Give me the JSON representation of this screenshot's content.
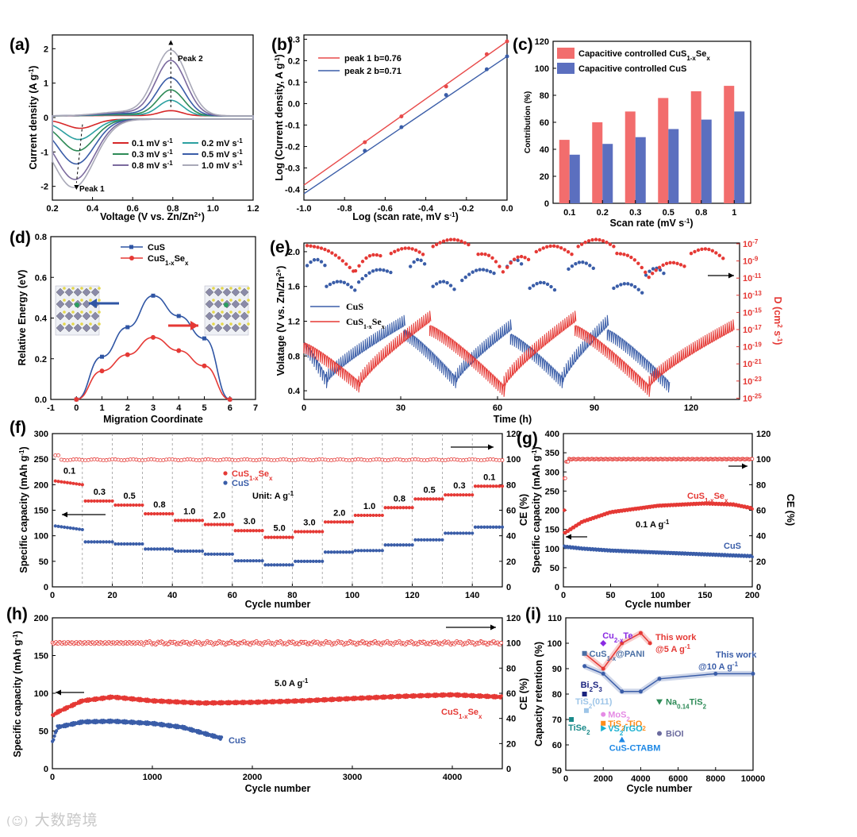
{
  "chart_data": [
    {
      "panel": "(a)",
      "type": "line",
      "xlabel": "Voltage (V vs. Zn/Zn2+)",
      "ylabel": "Current density (A g-1)",
      "xlim": [
        0.2,
        1.2
      ],
      "ylim": [
        -2.4,
        2.4
      ],
      "xticks": [
        0.2,
        0.4,
        0.6,
        0.8,
        1.0,
        1.2
      ],
      "yticks": [
        -2,
        -1,
        0,
        1,
        2
      ],
      "annotations": [
        "Peak 1",
        "Peak 2"
      ],
      "series": [
        {
          "name": "0.1 mV s-1",
          "color": "#d62728",
          "peak2": 0.15,
          "peak1": -0.25
        },
        {
          "name": "0.2 mV s-1",
          "color": "#2ca0a0",
          "peak2": 0.45,
          "peak1": -0.55
        },
        {
          "name": "0.3 mV s-1",
          "color": "#2e8b57",
          "peak2": 0.75,
          "peak1": -0.85
        },
        {
          "name": "0.5 mV s-1",
          "color": "#3a5da8",
          "peak2": 1.1,
          "peak1": -1.2
        },
        {
          "name": "0.8 mV s-1",
          "color": "#7b6a9e",
          "peak2": 1.6,
          "peak1": -1.6
        },
        {
          "name": "1.0 mV s-1",
          "color": "#a9a9b8",
          "peak2": 1.9,
          "peak1": -1.8
        }
      ]
    },
    {
      "panel": "(b)",
      "type": "line",
      "xlabel": "Log (scan rate, mV s-1)",
      "ylabel": "Log (Current density, A g-1)",
      "xlim": [
        -1.0,
        0.0
      ],
      "ylim": [
        -0.45,
        0.32
      ],
      "xticks": [
        -1.0,
        -0.8,
        -0.6,
        -0.4,
        -0.2,
        0.0
      ],
      "yticks": [
        -0.4,
        -0.3,
        -0.2,
        -0.1,
        0.0,
        0.1,
        0.2,
        0.3
      ],
      "series": [
        {
          "name": "peak 1 b=0.76",
          "color": "#e84a4a",
          "x": [
            -1.0,
            -0.7,
            -0.52,
            -0.3,
            -0.1,
            0.0
          ],
          "y": [
            -0.38,
            -0.18,
            -0.06,
            0.08,
            0.23,
            0.29
          ]
        },
        {
          "name": "peak 2 b=0.71",
          "color": "#3a5da8",
          "x": [
            -1.0,
            -0.7,
            -0.52,
            -0.3,
            -0.1,
            0.0
          ],
          "y": [
            -0.42,
            -0.22,
            -0.11,
            0.04,
            0.16,
            0.22
          ]
        }
      ]
    },
    {
      "panel": "(c)",
      "type": "bar",
      "xlabel": "Scan rate (mV s-1)",
      "ylabel": "Contribution (%)",
      "ylim": [
        0,
        120
      ],
      "yticks": [
        0,
        20,
        40,
        60,
        80,
        100,
        120
      ],
      "categories": [
        "0.1",
        "0.2",
        "0.3",
        "0.5",
        "0.8",
        "1"
      ],
      "series": [
        {
          "name": "Capacitive controlled CuS1-xSex",
          "color": "#f26d6d",
          "values": [
            47,
            60,
            68,
            78,
            83,
            87
          ]
        },
        {
          "name": "Capacitive controlled CuS",
          "color": "#5b6fbf",
          "values": [
            36,
            44,
            49,
            55,
            62,
            68
          ]
        }
      ]
    },
    {
      "panel": "(d)",
      "type": "line",
      "xlabel": "Migration Coordinate",
      "ylabel": "Relative Energy (eV)",
      "xlim": [
        -1,
        7
      ],
      "ylim": [
        0,
        0.8
      ],
      "xticks": [
        -1,
        0,
        1,
        2,
        3,
        4,
        5,
        6,
        7
      ],
      "yticks": [
        0.0,
        0.2,
        0.4,
        0.6,
        0.8
      ],
      "series": [
        {
          "name": "CuS",
          "color": "#2f55a4",
          "x": [
            0,
            1,
            2,
            3,
            4,
            5,
            6
          ],
          "y": [
            0.0,
            0.21,
            0.355,
            0.51,
            0.41,
            0.3,
            0.0
          ]
        },
        {
          "name": "CuS1-xSex",
          "color": "#e53935",
          "x": [
            0,
            1,
            2,
            3,
            4,
            5,
            6
          ],
          "y": [
            0.0,
            0.14,
            0.22,
            0.305,
            0.24,
            0.165,
            0.0
          ]
        }
      ]
    },
    {
      "panel": "(e)",
      "type": "line",
      "xlabel": "Time (h)",
      "ylabel": "Volatage (V vs. Zn/Zn2+)",
      "ylabel_right": "D (cm2 s-1)",
      "xlim": [
        0,
        135
      ],
      "ylim": [
        0.3,
        2.1
      ],
      "xticks": [
        0,
        30,
        60,
        90,
        120
      ],
      "yticks": [
        0.4,
        0.8,
        1.2,
        1.6,
        2.0
      ],
      "yticks_right": [
        "10-7",
        "10-9",
        "10-11",
        "10-13",
        "10-15",
        "10-17",
        "10-19",
        "10-21",
        "10-23",
        "10-25"
      ],
      "series": [
        {
          "name": "CuS",
          "color": "#3a5da8"
        },
        {
          "name": "CuS1-xSex",
          "color": "#e53935"
        }
      ]
    },
    {
      "panel": "(f)",
      "type": "scatter",
      "xlabel": "Cycle number",
      "ylabel": "Specific capacity (mAh g-1)",
      "xlim": [
        0,
        150
      ],
      "ylim": [
        0,
        300
      ],
      "ylim_right": [
        0,
        120
      ],
      "xticks": [
        0,
        20,
        40,
        60,
        80,
        100,
        120,
        140
      ],
      "yticks": [
        0,
        50,
        100,
        150,
        200,
        250,
        300
      ],
      "yticks_right": [
        0,
        20,
        40,
        60,
        80,
        100,
        120
      ],
      "unit_label": "Unit: A g-1",
      "rate_labels": [
        "0.1",
        "0.3",
        "0.5",
        "0.8",
        "1.0",
        "2.0",
        "3.0",
        "5.0",
        "3.0",
        "2.0",
        "1.0",
        "0.8",
        "0.5",
        "0.3",
        "0.1"
      ],
      "series": [
        {
          "name": "CuS1-xSex",
          "color": "#e53935",
          "values": [
            200,
            168,
            160,
            143,
            130,
            122,
            110,
            97,
            108,
            127,
            140,
            155,
            172,
            180,
            197
          ]
        },
        {
          "name": "CuS",
          "color": "#3a5da8",
          "values": [
            112,
            88,
            84,
            74,
            70,
            64,
            51,
            43,
            50,
            68,
            71,
            82,
            92,
            105,
            117
          ]
        }
      ]
    },
    {
      "panel": "(g)",
      "type": "scatter",
      "xlabel": "Cycle number",
      "ylabel": "Specific capacity (mAh g-1)",
      "ylabel_right": "CE (%)",
      "xlim": [
        0,
        200
      ],
      "ylim": [
        0,
        400
      ],
      "ylim_right": [
        0,
        120
      ],
      "xticks": [
        0,
        50,
        100,
        150,
        200
      ],
      "yticks": [
        0,
        50,
        100,
        150,
        200,
        250,
        300,
        350,
        400
      ],
      "yticks_right": [
        0,
        20,
        40,
        60,
        80,
        100,
        120
      ],
      "annotation": "0.1 A g-1",
      "series": [
        {
          "name": "CuS1-xSex",
          "color": "#e53935",
          "x": [
            1,
            20,
            50,
            100,
            150,
            180,
            200
          ],
          "y": [
            140,
            170,
            195,
            212,
            218,
            215,
            205
          ]
        },
        {
          "name": "CuS",
          "color": "#3a5da8",
          "x": [
            1,
            20,
            50,
            100,
            150,
            200
          ],
          "y": [
            105,
            100,
            95,
            90,
            85,
            80
          ]
        }
      ]
    },
    {
      "panel": "(h)",
      "type": "scatter",
      "xlabel": "Cycle number",
      "ylabel": "Specific capacity (mAh g-1)",
      "ylabel_right": "CE (%)",
      "xlim": [
        0,
        4500
      ],
      "ylim": [
        0,
        200
      ],
      "ylim_right": [
        0,
        120
      ],
      "xticks": [
        0,
        1000,
        2000,
        3000,
        4000
      ],
      "yticks": [
        0,
        50,
        100,
        150,
        200
      ],
      "yticks_right": [
        0,
        20,
        40,
        60,
        80,
        100,
        120
      ],
      "annotation": "5.0 A g-1",
      "series": [
        {
          "name": "CuS1-xSex",
          "color": "#e53935",
          "x": [
            1,
            50,
            300,
            600,
            1000,
            1500,
            2000,
            2500,
            3000,
            3500,
            4000,
            4500
          ],
          "y": [
            70,
            75,
            90,
            95,
            90,
            87,
            88,
            90,
            93,
            96,
            98,
            95
          ]
        },
        {
          "name": "CuS",
          "color": "#3a5da8",
          "x": [
            1,
            50,
            300,
            600,
            1000,
            1300,
            1700
          ],
          "y": [
            35,
            55,
            62,
            63,
            60,
            55,
            40
          ]
        }
      ]
    },
    {
      "panel": "(i)",
      "type": "scatter",
      "xlabel": "Cycle number",
      "ylabel": "Capacity retention (%)",
      "xlim": [
        0,
        10000
      ],
      "ylim": [
        50,
        110
      ],
      "xticks": [
        0,
        2000,
        4000,
        6000,
        8000,
        10000
      ],
      "yticks": [
        50,
        60,
        70,
        80,
        90,
        100,
        110
      ],
      "series": [
        {
          "name": "This work @5 A g-1",
          "color": "#e53935",
          "x": [
            1000,
            2000,
            3000,
            4000,
            4500
          ],
          "y": [
            96,
            90,
            100,
            104,
            100
          ]
        },
        {
          "name": "This work @10 A g-1",
          "color": "#3a5da8",
          "x": [
            1000,
            2000,
            3000,
            4000,
            5000,
            8000,
            10000
          ],
          "y": [
            91,
            88,
            81,
            81,
            86,
            88,
            88
          ]
        }
      ],
      "points": [
        {
          "label": "Cu2-xTe",
          "x": 2000,
          "y": 100,
          "color": "#8a2be2"
        },
        {
          "label": "CuS1-x@PANI",
          "x": 1000,
          "y": 96,
          "color": "#4a6fa5"
        },
        {
          "label": "Bi2S3",
          "x": 1000,
          "y": 80,
          "color": "#1a237e"
        },
        {
          "label": "TiS2(011)",
          "x": 1100,
          "y": 73.5,
          "color": "#9ec5e8"
        },
        {
          "label": "MoS2",
          "x": 2000,
          "y": 72,
          "color": "#e58be5"
        },
        {
          "label": "Na0.14TiS2",
          "x": 5000,
          "y": 77,
          "color": "#2e8b57"
        },
        {
          "label": "TiS2-TiO2",
          "x": 2000,
          "y": 68.5,
          "color": "#ff8c1a"
        },
        {
          "label": "VS2/rGO",
          "x": 2000,
          "y": 66.5,
          "color": "#1ab0d0"
        },
        {
          "label": "TiSe2",
          "x": 300,
          "y": 70,
          "color": "#1a8a8a"
        },
        {
          "label": "BiOI",
          "x": 5000,
          "y": 64.5,
          "color": "#6a6a9e"
        },
        {
          "label": "CuS-CTABM",
          "x": 3000,
          "y": 62,
          "color": "#1e88e5"
        }
      ]
    }
  ],
  "watermark": "大数跨境"
}
